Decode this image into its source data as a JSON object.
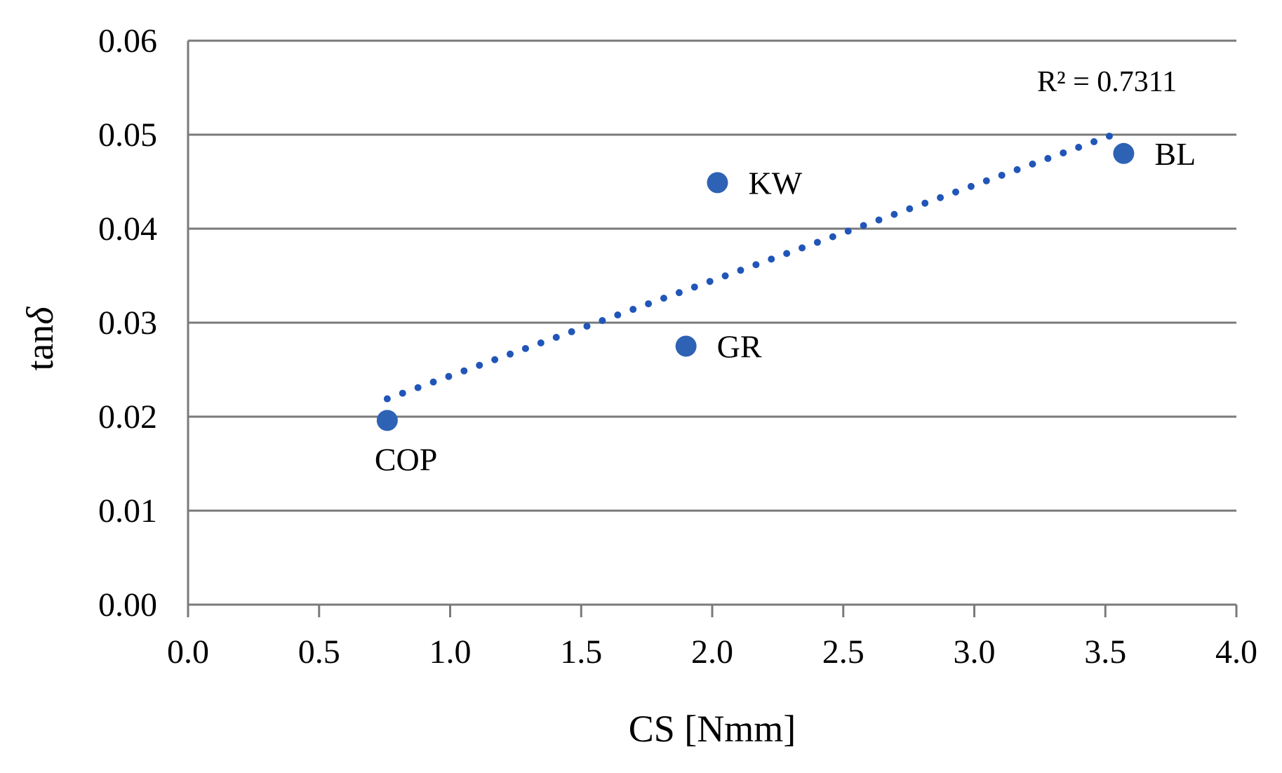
{
  "chart_data": {
    "type": "scatter",
    "title": "",
    "xlabel": "CS [Nmm]",
    "ylabel": "tanδ",
    "ylabel_prefix": "tan",
    "ylabel_symbol": "δ",
    "xlim": [
      0.0,
      4.0
    ],
    "ylim": [
      0.0,
      0.06
    ],
    "xtick_labels": [
      "0.0",
      "0.5",
      "1.0",
      "1.5",
      "2.0",
      "2.5",
      "3.0",
      "3.5",
      "4.0"
    ],
    "ytick_labels": [
      "0.00",
      "0.01",
      "0.02",
      "0.03",
      "0.04",
      "0.05",
      "0.06"
    ],
    "grid": true,
    "legend": false,
    "points": [
      {
        "label": "COP",
        "x": 0.76,
        "y": 0.0196,
        "label_side": "below"
      },
      {
        "label": "GR",
        "x": 1.9,
        "y": 0.0275,
        "label_side": "right"
      },
      {
        "label": "KW",
        "x": 2.02,
        "y": 0.0449,
        "label_side": "right"
      },
      {
        "label": "BL",
        "x": 3.57,
        "y": 0.048,
        "label_side": "right"
      }
    ],
    "trendline": {
      "style": "dotted",
      "start": {
        "x": 0.76,
        "y": 0.0219
      },
      "end": {
        "x": 3.56,
        "y": 0.0503
      },
      "r_squared": "R² = 0.7311"
    },
    "colors": {
      "marker": "#2e62b5",
      "trend": "#2156b8",
      "grid": "#7a7a7a",
      "text": "#000000"
    }
  }
}
